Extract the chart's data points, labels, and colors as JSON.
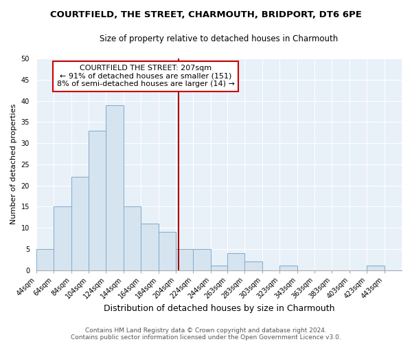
{
  "title": "COURTFIELD, THE STREET, CHARMOUTH, BRIDPORT, DT6 6PE",
  "subtitle": "Size of property relative to detached houses in Charmouth",
  "xlabel": "Distribution of detached houses by size in Charmouth",
  "ylabel": "Number of detached properties",
  "bin_edges": [
    44,
    64,
    84,
    104,
    124,
    144,
    164,
    184,
    204,
    224,
    244,
    263,
    283,
    303,
    323,
    343,
    363,
    383,
    403,
    423,
    443,
    463
  ],
  "bar_heights": [
    5,
    15,
    22,
    33,
    39,
    15,
    11,
    9,
    5,
    5,
    1,
    4,
    2,
    0,
    1,
    0,
    0,
    0,
    0,
    1,
    0
  ],
  "bar_color": "#d6e4f0",
  "bar_edge_color": "#7faacc",
  "vline_x": 207,
  "vline_color": "#aa0000",
  "ylim": [
    0,
    50
  ],
  "yticks": [
    0,
    5,
    10,
    15,
    20,
    25,
    30,
    35,
    40,
    45,
    50
  ],
  "ann_line1": "COURTFIELD THE STREET: 207sqm",
  "ann_line2": "← 91% of detached houses are smaller (151)",
  "ann_line3": "8% of semi-detached houses are larger (14) →",
  "footer_line1": "Contains HM Land Registry data © Crown copyright and database right 2024.",
  "footer_line2": "Contains public sector information licensed under the Open Government Licence v3.0.",
  "tick_labels": [
    "44sqm",
    "64sqm",
    "84sqm",
    "104sqm",
    "124sqm",
    "144sqm",
    "164sqm",
    "184sqm",
    "204sqm",
    "224sqm",
    "244sqm",
    "263sqm",
    "283sqm",
    "303sqm",
    "323sqm",
    "343sqm",
    "363sqm",
    "383sqm",
    "403sqm",
    "423sqm",
    "443sqm"
  ],
  "background_color": "#ffffff",
  "plot_bg_color": "#e8f0f8",
  "grid_color": "#ffffff",
  "title_fontsize": 9.5,
  "subtitle_fontsize": 8.5,
  "ylabel_fontsize": 8,
  "xlabel_fontsize": 9,
  "tick_fontsize": 7,
  "ann_fontsize": 8,
  "footer_fontsize": 6.5
}
